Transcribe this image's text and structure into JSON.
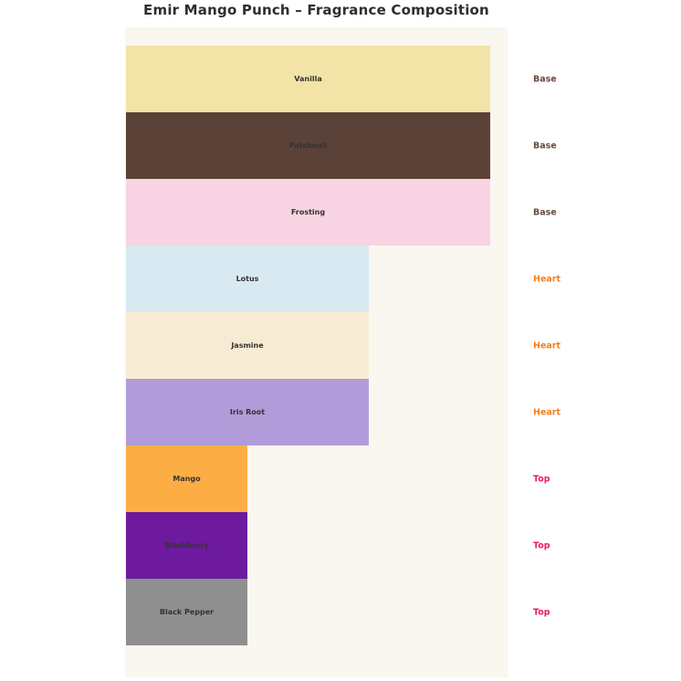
{
  "chart_data": {
    "type": "bar",
    "orientation": "horizontal",
    "title": "Emir Mango Punch – Fragrance Composition",
    "categories": [
      "Vanilla",
      "Patchouli",
      "Frosting",
      "Lotus",
      "Jasmine",
      "Iris Root",
      "Mango",
      "Blackberry",
      "Black Pepper"
    ],
    "values": [
      3,
      3,
      3,
      2,
      2,
      2,
      1,
      1,
      1
    ],
    "value_note": "bar length encodes stage weight; Base:Heart:Top = 3:2:1",
    "xlim": [
      0,
      3.15
    ],
    "grid": false,
    "legend": false,
    "plot_background": "#faf6f0",
    "bar_label_color": "#333333",
    "notes": [
      {
        "label": "Vanilla",
        "stage": "Base",
        "value": 3,
        "color": "#f2e4a6"
      },
      {
        "label": "Patchouli",
        "stage": "Base",
        "value": 3,
        "color": "#5a4238"
      },
      {
        "label": "Frosting",
        "stage": "Base",
        "value": 3,
        "color": "#f8d3e2"
      },
      {
        "label": "Lotus",
        "stage": "Heart",
        "value": 2,
        "color": "#d9e9f2"
      },
      {
        "label": "Jasmine",
        "stage": "Heart",
        "value": 2,
        "color": "#f8ebd4"
      },
      {
        "label": "Iris Root",
        "stage": "Heart",
        "value": 2,
        "color": "#b19cd9"
      },
      {
        "label": "Mango",
        "stage": "Top",
        "value": 1,
        "color": "#fcae45"
      },
      {
        "label": "Blackberry",
        "stage": "Top",
        "value": 1,
        "color": "#6d1a9e"
      },
      {
        "label": "Black Pepper",
        "stage": "Top",
        "value": 1,
        "color": "#8f8f8f"
      }
    ],
    "stage_colors": {
      "Base": "#6b4a40",
      "Heart": "#f28118",
      "Top": "#ea1a5e"
    }
  }
}
